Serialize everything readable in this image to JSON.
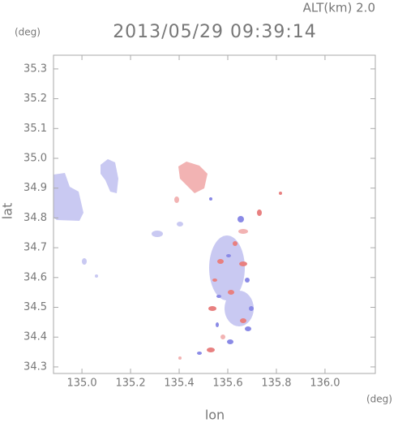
{
  "chart_data": {
    "type": "map",
    "title": "2013/05/29 09:39:14",
    "subtitle": "ALT(km) 2.0",
    "x_label": "lon",
    "y_label": "lat",
    "x_unit": "(deg)",
    "y_unit": "(deg)",
    "xlim": [
      134.883,
      136.207
    ],
    "ylim": [
      34.278,
      35.346
    ],
    "xticks": [
      {
        "value": 135,
        "label": "135.0"
      },
      135.2,
      135.4,
      135.6,
      135.8,
      {
        "value": 136,
        "label": "136.0"
      }
    ],
    "yticks": [
      34.3,
      34.4,
      34.5,
      34.6,
      34.7,
      34.8,
      34.9,
      {
        "value": 35,
        "label": "35.0"
      },
      35.1,
      35.2,
      35.3
    ]
  }
}
